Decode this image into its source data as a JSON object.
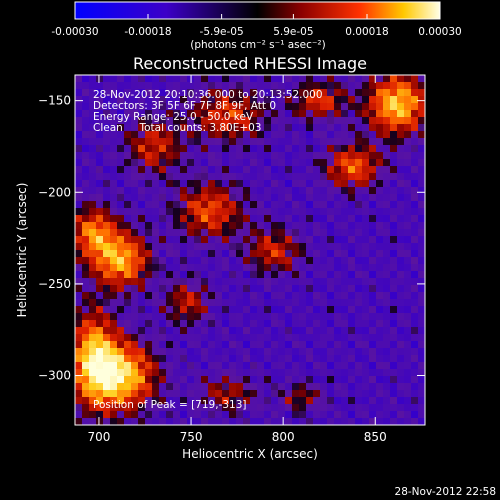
{
  "chart_data": {
    "type": "heatmap",
    "title": "Reconstructed RHESSI Image",
    "xlabel": "Heliocentric X (arcsec)",
    "ylabel": "Heliocentric Y (arcsec)",
    "xlim": [
      687,
      877
    ],
    "ylim": [
      -327,
      -136
    ],
    "x_ticks": [
      700,
      750,
      800,
      850
    ],
    "y_ticks": [
      -150,
      -200,
      -250,
      -300
    ],
    "x_tick_labels": [
      "700",
      "750",
      "800",
      "850"
    ],
    "y_tick_labels": [
      "−150",
      "−200",
      "−250",
      "−300"
    ],
    "colorbar": {
      "min": -0.0003,
      "max": 0.0003,
      "ticks": [
        -0.0003,
        -0.00018,
        -5.9e-05,
        5.9e-05,
        0.00018,
        0.0003
      ],
      "tick_labels": [
        "-0.00030",
        "-0.00018",
        "-5.9e-05",
        "5.9e-05",
        "0.00018",
        "0.00030"
      ],
      "unit_label": "(photons cm⁻² s⁻¹ asec⁻²)"
    },
    "annotations": [
      "28-Nov-2012 20:10:36.000 to 20:13:52.000",
      "Detectors: 3F 5F 6F 7F 8F 9F, Att 0",
      "Energy Range: 25.0 - 50.0 keV",
      "Clean     Total counts: 3.80E+03",
      "Position of Peak = [719,-313]"
    ],
    "peak": [
      719,
      -313
    ],
    "hot_regions": [
      {
        "x": 712,
        "y": -300,
        "sx": 18,
        "sy": 18,
        "amp": 1.0
      },
      {
        "x": 697,
        "y": -290,
        "sx": 12,
        "sy": 25,
        "amp": 0.85
      },
      {
        "x": 712,
        "y": -237,
        "sx": 15,
        "sy": 15,
        "amp": 0.85
      },
      {
        "x": 697,
        "y": -222,
        "sx": 12,
        "sy": 14,
        "amp": 0.7
      },
      {
        "x": 862,
        "y": -152,
        "sx": 16,
        "sy": 16,
        "amp": 0.95
      },
      {
        "x": 820,
        "y": -150,
        "sx": 14,
        "sy": 10,
        "amp": 0.55
      },
      {
        "x": 838,
        "y": -186,
        "sx": 15,
        "sy": 12,
        "amp": 0.65
      },
      {
        "x": 770,
        "y": -158,
        "sx": 20,
        "sy": 14,
        "amp": 0.55
      },
      {
        "x": 730,
        "y": -175,
        "sx": 15,
        "sy": 15,
        "amp": 0.5
      },
      {
        "x": 760,
        "y": -210,
        "sx": 18,
        "sy": 15,
        "amp": 0.6
      },
      {
        "x": 795,
        "y": -232,
        "sx": 15,
        "sy": 12,
        "amp": 0.5
      },
      {
        "x": 748,
        "y": -260,
        "sx": 12,
        "sy": 12,
        "amp": 0.45
      },
      {
        "x": 770,
        "y": -310,
        "sx": 15,
        "sy": 10,
        "amp": 0.4
      },
      {
        "x": 810,
        "y": -312,
        "sx": 12,
        "sy": 8,
        "amp": 0.35
      }
    ]
  },
  "footer": {
    "timestamp": "28-Nov-2012 22:58"
  }
}
